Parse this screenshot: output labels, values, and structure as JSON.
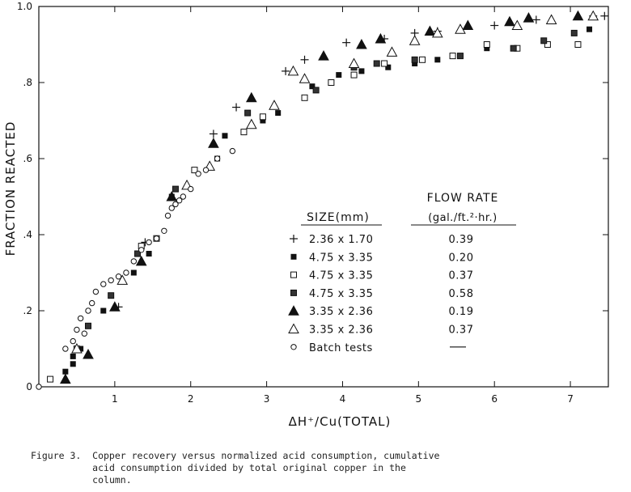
{
  "chart_data": {
    "type": "scatter",
    "xlabel": "ΔH⁺/Cu(TOTAL)",
    "ylabel": "FRACTION REACTED",
    "xlim": [
      0,
      7.5
    ],
    "ylim": [
      0,
      1.0
    ],
    "x_ticks": [
      "1",
      "2",
      "3",
      "4",
      "5",
      "6",
      "7"
    ],
    "y_ticks": [
      "0",
      ".2",
      ".4",
      ".6",
      ".8",
      "1.0"
    ],
    "grid": false,
    "legend_headers": {
      "size": "SIZE(mm)",
      "flow": "FLOW RATE",
      "flow_units": "(gal./ft.²·hr.)"
    },
    "series": [
      {
        "name": "2.36 x 1.70",
        "flow": "0.39",
        "marker": "plus",
        "points": [
          [
            1.05,
            0.21
          ],
          [
            1.4,
            0.38
          ],
          [
            2.3,
            0.665
          ],
          [
            2.6,
            0.735
          ],
          [
            3.25,
            0.83
          ],
          [
            3.5,
            0.86
          ],
          [
            4.05,
            0.905
          ],
          [
            4.55,
            0.915
          ],
          [
            4.95,
            0.93
          ],
          [
            5.25,
            0.935
          ],
          [
            6.0,
            0.95
          ],
          [
            6.55,
            0.965
          ],
          [
            7.3,
            0.975
          ],
          [
            7.45,
            0.975
          ]
        ]
      },
      {
        "name": "4.75 x 3.35",
        "flow": "0.20",
        "marker": "square-filled",
        "points": [
          [
            0.35,
            0.04
          ],
          [
            0.45,
            0.06
          ],
          [
            0.45,
            0.08
          ],
          [
            0.55,
            0.1
          ],
          [
            0.85,
            0.2
          ],
          [
            1.25,
            0.3
          ],
          [
            1.45,
            0.35
          ],
          [
            1.75,
            0.5
          ],
          [
            2.35,
            0.6
          ],
          [
            2.45,
            0.66
          ],
          [
            2.95,
            0.7
          ],
          [
            3.15,
            0.72
          ],
          [
            3.6,
            0.79
          ],
          [
            3.95,
            0.82
          ],
          [
            4.25,
            0.83
          ],
          [
            4.6,
            0.84
          ],
          [
            4.95,
            0.85
          ],
          [
            5.25,
            0.86
          ],
          [
            5.9,
            0.89
          ],
          [
            6.3,
            0.89
          ],
          [
            6.7,
            0.9
          ],
          [
            7.25,
            0.94
          ]
        ]
      },
      {
        "name": "4.75 x 3.35",
        "flow": "0.37",
        "marker": "square-open",
        "points": [
          [
            0.15,
            0.02
          ],
          [
            0.5,
            0.1
          ],
          [
            1.35,
            0.37
          ],
          [
            1.55,
            0.39
          ],
          [
            2.05,
            0.57
          ],
          [
            2.7,
            0.67
          ],
          [
            2.95,
            0.71
          ],
          [
            3.5,
            0.76
          ],
          [
            3.85,
            0.8
          ],
          [
            4.15,
            0.82
          ],
          [
            4.55,
            0.85
          ],
          [
            5.05,
            0.86
          ],
          [
            5.45,
            0.87
          ],
          [
            5.9,
            0.9
          ],
          [
            6.3,
            0.89
          ],
          [
            6.7,
            0.9
          ],
          [
            7.1,
            0.9
          ]
        ]
      },
      {
        "name": "4.75 x 3.35",
        "flow": "0.58",
        "marker": "square-gray",
        "points": [
          [
            0.65,
            0.16
          ],
          [
            0.95,
            0.24
          ],
          [
            1.3,
            0.35
          ],
          [
            1.8,
            0.52
          ],
          [
            2.75,
            0.72
          ],
          [
            3.65,
            0.78
          ],
          [
            4.15,
            0.84
          ],
          [
            4.45,
            0.85
          ],
          [
            4.95,
            0.86
          ],
          [
            5.55,
            0.87
          ],
          [
            6.25,
            0.89
          ],
          [
            6.65,
            0.91
          ],
          [
            7.05,
            0.93
          ]
        ]
      },
      {
        "name": "3.35 x 2.36",
        "flow": "0.19",
        "marker": "triangle-filled",
        "points": [
          [
            0.35,
            0.02
          ],
          [
            0.65,
            0.085
          ],
          [
            1.0,
            0.21
          ],
          [
            1.35,
            0.33
          ],
          [
            1.75,
            0.5
          ],
          [
            2.3,
            0.64
          ],
          [
            2.8,
            0.76
          ],
          [
            3.75,
            0.87
          ],
          [
            4.25,
            0.9
          ],
          [
            4.5,
            0.915
          ],
          [
            5.15,
            0.935
          ],
          [
            5.65,
            0.95
          ],
          [
            6.2,
            0.96
          ],
          [
            6.45,
            0.97
          ],
          [
            7.1,
            0.975
          ]
        ]
      },
      {
        "name": "3.35 x 2.36",
        "flow": "0.37",
        "marker": "triangle-open",
        "points": [
          [
            0.5,
            0.1
          ],
          [
            1.1,
            0.28
          ],
          [
            1.95,
            0.53
          ],
          [
            2.25,
            0.58
          ],
          [
            2.8,
            0.69
          ],
          [
            3.1,
            0.74
          ],
          [
            3.35,
            0.83
          ],
          [
            3.5,
            0.81
          ],
          [
            4.15,
            0.85
          ],
          [
            4.65,
            0.88
          ],
          [
            4.95,
            0.91
          ],
          [
            5.25,
            0.93
          ],
          [
            5.55,
            0.94
          ],
          [
            6.3,
            0.95
          ],
          [
            6.75,
            0.965
          ],
          [
            7.3,
            0.975
          ]
        ]
      },
      {
        "name": "Batch tests",
        "flow": "—",
        "marker": "circle-open",
        "points": [
          [
            0.0,
            0.0
          ],
          [
            0.35,
            0.1
          ],
          [
            0.45,
            0.12
          ],
          [
            0.5,
            0.15
          ],
          [
            0.55,
            0.18
          ],
          [
            0.65,
            0.2
          ],
          [
            0.7,
            0.22
          ],
          [
            0.75,
            0.25
          ],
          [
            0.85,
            0.27
          ],
          [
            0.95,
            0.28
          ],
          [
            1.05,
            0.29
          ],
          [
            1.15,
            0.3
          ],
          [
            1.25,
            0.33
          ],
          [
            1.35,
            0.36
          ],
          [
            1.45,
            0.38
          ],
          [
            1.55,
            0.39
          ],
          [
            1.65,
            0.41
          ],
          [
            1.7,
            0.45
          ],
          [
            1.75,
            0.47
          ],
          [
            1.8,
            0.48
          ],
          [
            1.85,
            0.49
          ],
          [
            1.9,
            0.5
          ],
          [
            2.0,
            0.52
          ],
          [
            2.1,
            0.56
          ],
          [
            2.2,
            0.57
          ],
          [
            2.35,
            0.6
          ],
          [
            2.55,
            0.62
          ],
          [
            0.6,
            0.14
          ]
        ]
      }
    ]
  },
  "caption": "Figure 3.  Copper recovery versus normalized acid consumption, cumulative\n           acid consumption divided by total original copper in the\n           column."
}
